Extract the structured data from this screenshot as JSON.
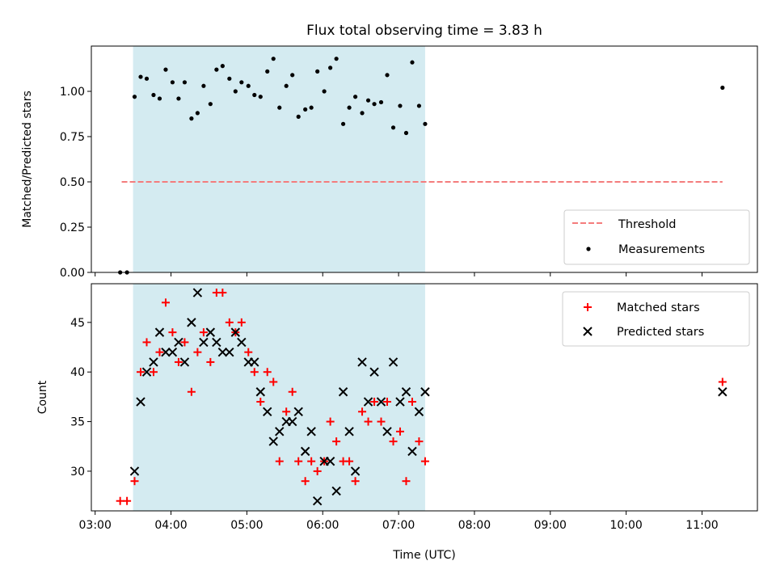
{
  "chart_data": [
    {
      "type": "scatter",
      "title": "Flux total observing time = 3.83 h",
      "ylabel": "Matched/Predicted stars",
      "xlabel": "",
      "x_unit": "hours UTC",
      "xlim": [
        2.95,
        11.73
      ],
      "ylim": [
        0.0,
        1.25
      ],
      "yticks": [
        0.0,
        0.25,
        0.5,
        0.75,
        1.0
      ],
      "ytick_labels": [
        "0.00",
        "0.25",
        "0.50",
        "0.75",
        "1.00"
      ],
      "grid": false,
      "shaded_span": [
        3.5,
        7.35
      ],
      "shade_color": "#d4ebf1",
      "legend_position": "lower-right",
      "threshold": {
        "name": "Threshold",
        "value": 0.5,
        "x_range": [
          3.35,
          11.27
        ],
        "color": "#f47c7c"
      },
      "series": [
        {
          "name": "Measurements",
          "color": "#000000",
          "marker": "dot",
          "points": [
            [
              3.33,
              0.0
            ],
            [
              3.42,
              0.0
            ],
            [
              3.52,
              0.97
            ],
            [
              3.6,
              1.08
            ],
            [
              3.68,
              1.07
            ],
            [
              3.77,
              0.98
            ],
            [
              3.85,
              0.96
            ],
            [
              3.93,
              1.12
            ],
            [
              4.02,
              1.05
            ],
            [
              4.1,
              0.96
            ],
            [
              4.18,
              1.05
            ],
            [
              4.27,
              0.85
            ],
            [
              4.35,
              0.88
            ],
            [
              4.43,
              1.03
            ],
            [
              4.52,
              0.93
            ],
            [
              4.6,
              1.12
            ],
            [
              4.68,
              1.14
            ],
            [
              4.77,
              1.07
            ],
            [
              4.85,
              1.0
            ],
            [
              4.93,
              1.05
            ],
            [
              5.02,
              1.03
            ],
            [
              5.1,
              0.98
            ],
            [
              5.18,
              0.97
            ],
            [
              5.27,
              1.11
            ],
            [
              5.35,
              1.18
            ],
            [
              5.43,
              0.91
            ],
            [
              5.52,
              1.03
            ],
            [
              5.6,
              1.09
            ],
            [
              5.68,
              0.86
            ],
            [
              5.77,
              0.9
            ],
            [
              5.85,
              0.91
            ],
            [
              5.93,
              1.11
            ],
            [
              6.02,
              1.0
            ],
            [
              6.1,
              1.13
            ],
            [
              6.18,
              1.18
            ],
            [
              6.27,
              0.82
            ],
            [
              6.35,
              0.91
            ],
            [
              6.43,
              0.97
            ],
            [
              6.52,
              0.88
            ],
            [
              6.6,
              0.95
            ],
            [
              6.68,
              0.93
            ],
            [
              6.77,
              0.94
            ],
            [
              6.85,
              1.09
            ],
            [
              6.93,
              0.8
            ],
            [
              7.02,
              0.92
            ],
            [
              7.1,
              0.77
            ],
            [
              7.18,
              1.16
            ],
            [
              7.27,
              0.92
            ],
            [
              7.35,
              0.82
            ],
            [
              11.27,
              1.02
            ]
          ]
        }
      ]
    },
    {
      "type": "scatter",
      "title": "",
      "xlabel": "Time (UTC)",
      "ylabel": "Count",
      "x_unit": "hours UTC",
      "xlim": [
        2.95,
        11.73
      ],
      "ylim": [
        26.0,
        48.9
      ],
      "xticks": [
        3,
        4,
        5,
        6,
        7,
        8,
        9,
        10,
        11
      ],
      "xtick_labels": [
        "03:00",
        "04:00",
        "05:00",
        "06:00",
        "07:00",
        "08:00",
        "09:00",
        "10:00",
        "11:00"
      ],
      "yticks": [
        30,
        35,
        40,
        45
      ],
      "ytick_labels": [
        "30",
        "35",
        "40",
        "45"
      ],
      "grid": false,
      "shaded_span": [
        3.5,
        7.35
      ],
      "shade_color": "#d4ebf1",
      "legend_position": "upper-right",
      "series": [
        {
          "name": "Matched stars",
          "color": "#ff0000",
          "marker": "plus",
          "points": [
            [
              3.33,
              27
            ],
            [
              3.42,
              27
            ],
            [
              3.52,
              29
            ],
            [
              3.6,
              40
            ],
            [
              3.68,
              43
            ],
            [
              3.77,
              40
            ],
            [
              3.85,
              42
            ],
            [
              3.93,
              47
            ],
            [
              4.02,
              44
            ],
            [
              4.1,
              41
            ],
            [
              4.18,
              43
            ],
            [
              4.27,
              38
            ],
            [
              4.35,
              42
            ],
            [
              4.43,
              44
            ],
            [
              4.52,
              41
            ],
            [
              4.6,
              48
            ],
            [
              4.68,
              48
            ],
            [
              4.77,
              45
            ],
            [
              4.85,
              44
            ],
            [
              4.93,
              45
            ],
            [
              5.02,
              42
            ],
            [
              5.1,
              40
            ],
            [
              5.18,
              37
            ],
            [
              5.27,
              40
            ],
            [
              5.35,
              39
            ],
            [
              5.43,
              31
            ],
            [
              5.52,
              36
            ],
            [
              5.6,
              38
            ],
            [
              5.68,
              31
            ],
            [
              5.77,
              29
            ],
            [
              5.85,
              31
            ],
            [
              5.93,
              30
            ],
            [
              6.02,
              31
            ],
            [
              6.1,
              35
            ],
            [
              6.18,
              33
            ],
            [
              6.27,
              31
            ],
            [
              6.35,
              31
            ],
            [
              6.43,
              29
            ],
            [
              6.52,
              36
            ],
            [
              6.6,
              35
            ],
            [
              6.68,
              37
            ],
            [
              6.77,
              35
            ],
            [
              6.85,
              37
            ],
            [
              6.93,
              33
            ],
            [
              7.02,
              34
            ],
            [
              7.1,
              29
            ],
            [
              7.18,
              37
            ],
            [
              7.27,
              33
            ],
            [
              7.35,
              31
            ],
            [
              11.27,
              39
            ]
          ]
        },
        {
          "name": "Predicted stars",
          "color": "#000000",
          "marker": "x",
          "points": [
            [
              3.52,
              30
            ],
            [
              3.6,
              37
            ],
            [
              3.68,
              40
            ],
            [
              3.77,
              41
            ],
            [
              3.85,
              44
            ],
            [
              3.93,
              42
            ],
            [
              4.02,
              42
            ],
            [
              4.1,
              43
            ],
            [
              4.18,
              41
            ],
            [
              4.27,
              45
            ],
            [
              4.35,
              48
            ],
            [
              4.43,
              43
            ],
            [
              4.52,
              44
            ],
            [
              4.6,
              43
            ],
            [
              4.68,
              42
            ],
            [
              4.77,
              42
            ],
            [
              4.85,
              44
            ],
            [
              4.93,
              43
            ],
            [
              5.02,
              41
            ],
            [
              5.1,
              41
            ],
            [
              5.18,
              38
            ],
            [
              5.27,
              36
            ],
            [
              5.35,
              33
            ],
            [
              5.43,
              34
            ],
            [
              5.52,
              35
            ],
            [
              5.6,
              35
            ],
            [
              5.68,
              36
            ],
            [
              5.77,
              32
            ],
            [
              5.85,
              34
            ],
            [
              5.93,
              27
            ],
            [
              6.02,
              31
            ],
            [
              6.1,
              31
            ],
            [
              6.18,
              28
            ],
            [
              6.27,
              38
            ],
            [
              6.35,
              34
            ],
            [
              6.43,
              30
            ],
            [
              6.52,
              41
            ],
            [
              6.6,
              37
            ],
            [
              6.68,
              40
            ],
            [
              6.77,
              37
            ],
            [
              6.85,
              34
            ],
            [
              6.93,
              41
            ],
            [
              7.02,
              37
            ],
            [
              7.1,
              38
            ],
            [
              7.18,
              32
            ],
            [
              7.27,
              36
            ],
            [
              7.35,
              38
            ],
            [
              11.27,
              38
            ]
          ]
        }
      ]
    }
  ]
}
